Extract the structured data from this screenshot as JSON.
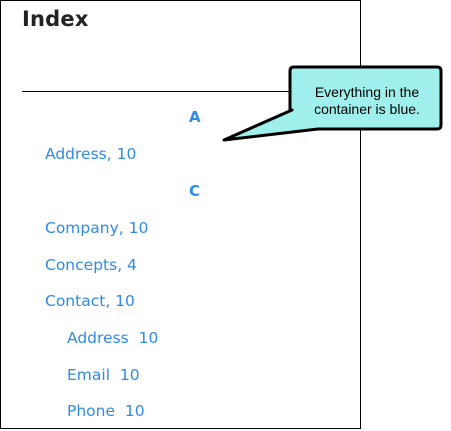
{
  "title": "Index",
  "sections": [
    {
      "letter": "A",
      "entries": [
        {
          "term": "Address",
          "page": "10"
        }
      ]
    },
    {
      "letter": "C",
      "entries": [
        {
          "term": "Company",
          "page": "10"
        },
        {
          "term": "Concepts",
          "page": "4"
        },
        {
          "term": "Contact",
          "page": "10"
        }
      ],
      "subentries": [
        {
          "term": "Address",
          "page": "10"
        },
        {
          "term": "Email",
          "page": "10"
        },
        {
          "term": "Phone",
          "page": "10"
        }
      ]
    }
  ],
  "callout": {
    "line1": "Everything in the",
    "line2": "container is blue."
  },
  "colors": {
    "index_text": "#2e8be6",
    "callout_fill": "#9ff0ec",
    "border": "#000000"
  }
}
